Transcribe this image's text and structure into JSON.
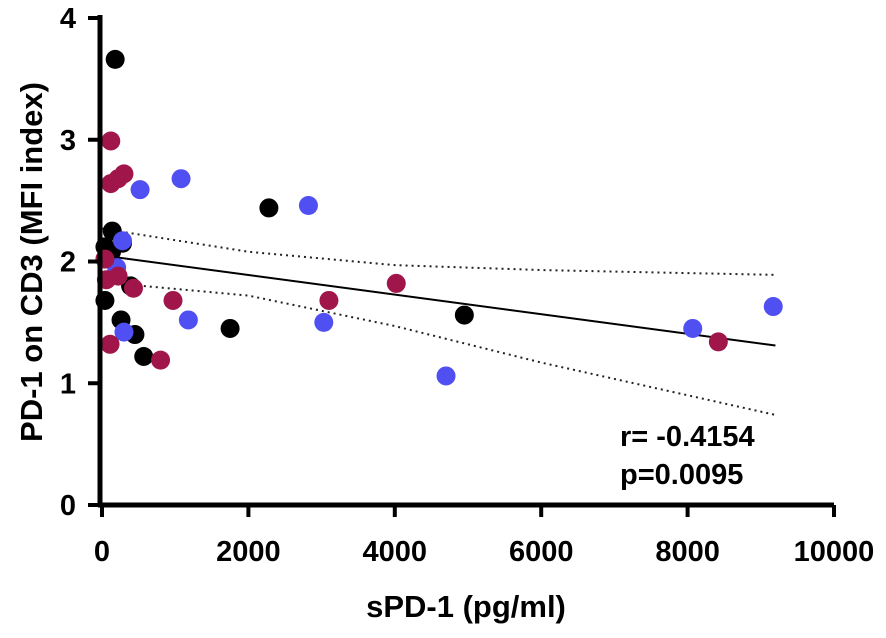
{
  "chart_data": {
    "type": "scatter",
    "title": "",
    "xlabel": "sPD-1 (pg/ml)",
    "ylabel": "PD-1 on CD3 (MFI index)",
    "xlim": [
      0,
      10000
    ],
    "ylim": [
      0,
      4
    ],
    "xticks": [
      "0",
      "2000",
      "4000",
      "6000",
      "8000",
      "10000"
    ],
    "yticks": [
      "0",
      "1",
      "2",
      "3",
      "4"
    ],
    "grid": false,
    "colors": {
      "black": "#000000",
      "blue": "#4f4ff2",
      "maroon": "#a0164a"
    },
    "series": [
      {
        "name": "black",
        "color": "#000000",
        "points": [
          {
            "x": 180,
            "y": 3.66
          },
          {
            "x": 140,
            "y": 2.25
          },
          {
            "x": 40,
            "y": 2.12
          },
          {
            "x": 130,
            "y": 2.08
          },
          {
            "x": 280,
            "y": 2.15
          },
          {
            "x": 40,
            "y": 1.68
          },
          {
            "x": 390,
            "y": 1.8
          },
          {
            "x": 260,
            "y": 1.52
          },
          {
            "x": 450,
            "y": 1.4
          },
          {
            "x": 570,
            "y": 1.22
          },
          {
            "x": 1750,
            "y": 1.45
          },
          {
            "x": 2280,
            "y": 2.44
          },
          {
            "x": 4950,
            "y": 1.56
          }
        ]
      },
      {
        "name": "blue",
        "color": "#4f4ff2",
        "points": [
          {
            "x": 520,
            "y": 2.59
          },
          {
            "x": 1080,
            "y": 2.68
          },
          {
            "x": 280,
            "y": 2.17
          },
          {
            "x": 200,
            "y": 1.95
          },
          {
            "x": 300,
            "y": 1.42
          },
          {
            "x": 1180,
            "y": 1.52
          },
          {
            "x": 2820,
            "y": 2.46
          },
          {
            "x": 3030,
            "y": 1.5
          },
          {
            "x": 4700,
            "y": 1.06
          },
          {
            "x": 8070,
            "y": 1.45
          },
          {
            "x": 9170,
            "y": 1.63
          }
        ]
      },
      {
        "name": "maroon",
        "color": "#a0164a",
        "points": [
          {
            "x": 120,
            "y": 2.99
          },
          {
            "x": 120,
            "y": 2.64
          },
          {
            "x": 220,
            "y": 2.68
          },
          {
            "x": 300,
            "y": 2.72
          },
          {
            "x": 40,
            "y": 2.02
          },
          {
            "x": 60,
            "y": 1.85
          },
          {
            "x": 220,
            "y": 1.88
          },
          {
            "x": 430,
            "y": 1.78
          },
          {
            "x": 110,
            "y": 1.32
          },
          {
            "x": 800,
            "y": 1.19
          },
          {
            "x": 970,
            "y": 1.68
          },
          {
            "x": 3100,
            "y": 1.68
          },
          {
            "x": 4020,
            "y": 1.82
          },
          {
            "x": 8420,
            "y": 1.34
          }
        ]
      }
    ],
    "regression": {
      "x": [
        0,
        9200
      ],
      "y": [
        2.05,
        1.31
      ]
    },
    "ci_upper": {
      "x": [
        0,
        2000,
        4000,
        6000,
        9200
      ],
      "y": [
        2.27,
        2.08,
        1.97,
        1.93,
        1.89
      ]
    },
    "ci_lower": {
      "x": [
        0,
        2000,
        4000,
        6000,
        9200
      ],
      "y": [
        1.83,
        1.72,
        1.47,
        1.17,
        0.74
      ]
    },
    "annotations": {
      "r": "r= -0.4154",
      "p": "p=0.0095"
    }
  }
}
